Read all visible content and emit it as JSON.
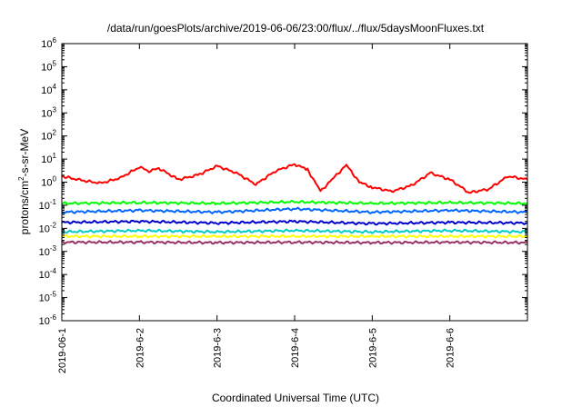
{
  "chart_data": {
    "type": "line",
    "title": "/data/run/goesPlots/archive/2019-06-06/23:00/flux/../flux/5daysMoonFluxes.txt",
    "xlabel": "Coordinated Universal Time (UTC)",
    "ylabel": {
      "pre": "protons/cm",
      "sup": "2",
      "post": "-s-sr-MeV"
    },
    "y_scale": "log",
    "ylim": [
      1e-06,
      1000000.0
    ],
    "xlim": [
      "2019-06-01",
      "2019-06-07"
    ],
    "x_tick_labels": [
      "2019-06-1",
      "2019-6-2",
      "2019-6-3",
      "2019-6-4",
      "2019-6-5",
      "2019-6-6"
    ],
    "y_tick_labels": [
      {
        "base": "10",
        "exp": "-6"
      },
      {
        "base": "10",
        "exp": "-5"
      },
      {
        "base": "10",
        "exp": "-4"
      },
      {
        "base": "10",
        "exp": "-3"
      },
      {
        "base": "10",
        "exp": "-2"
      },
      {
        "base": "10",
        "exp": "-1"
      },
      {
        "base": "10",
        "exp": "0"
      },
      {
        "base": "10",
        "exp": "1"
      },
      {
        "base": "10",
        "exp": "2"
      },
      {
        "base": "10",
        "exp": "3"
      },
      {
        "base": "10",
        "exp": "4"
      },
      {
        "base": "10",
        "exp": "5"
      },
      {
        "base": "10",
        "exp": "6"
      }
    ],
    "grid": false,
    "legend": "none",
    "series": [
      {
        "color": "#ff0000",
        "points": [
          [
            "2019-06-01T00:00",
            1.8
          ],
          [
            "2019-06-01T06:00",
            1.2
          ],
          [
            "2019-06-01T12:00",
            0.9
          ],
          [
            "2019-06-01T18:00",
            1.5
          ],
          [
            "2019-06-02T00:00",
            4.5
          ],
          [
            "2019-06-02T03:00",
            3.0
          ],
          [
            "2019-06-02T06:00",
            4.0
          ],
          [
            "2019-06-02T12:00",
            1.3
          ],
          [
            "2019-06-02T18:00",
            2.0
          ],
          [
            "2019-06-03T00:00",
            5.0
          ],
          [
            "2019-06-03T06:00",
            2.5
          ],
          [
            "2019-06-03T12:00",
            0.8
          ],
          [
            "2019-06-03T18:00",
            3.0
          ],
          [
            "2019-06-04T00:00",
            6.0
          ],
          [
            "2019-06-04T04:00",
            3.5
          ],
          [
            "2019-06-04T08:00",
            0.4
          ],
          [
            "2019-06-04T12:00",
            1.5
          ],
          [
            "2019-06-04T16:00",
            5.5
          ],
          [
            "2019-06-04T20:00",
            1.0
          ],
          [
            "2019-06-05T00:00",
            0.6
          ],
          [
            "2019-06-05T06:00",
            0.4
          ],
          [
            "2019-06-05T12:00",
            0.7
          ],
          [
            "2019-06-05T18:00",
            2.5
          ],
          [
            "2019-06-06T00:00",
            1.3
          ],
          [
            "2019-06-06T06:00",
            0.35
          ],
          [
            "2019-06-06T12:00",
            0.5
          ],
          [
            "2019-06-06T18:00",
            1.8
          ],
          [
            "2019-06-06T23:59",
            1.3
          ]
        ]
      },
      {
        "color": "#00ff00",
        "points": [
          [
            "2019-06-01T00:00",
            0.12
          ],
          [
            "2019-06-02T00:00",
            0.13
          ],
          [
            "2019-06-03T00:00",
            0.12
          ],
          [
            "2019-06-04T00:00",
            0.14
          ],
          [
            "2019-06-05T00:00",
            0.12
          ],
          [
            "2019-06-06T00:00",
            0.13
          ],
          [
            "2019-06-06T23:59",
            0.12
          ]
        ]
      },
      {
        "color": "#0066ff",
        "points": [
          [
            "2019-06-01T00:00",
            0.05
          ],
          [
            "2019-06-02T00:00",
            0.06
          ],
          [
            "2019-06-03T00:00",
            0.05
          ],
          [
            "2019-06-04T00:00",
            0.07
          ],
          [
            "2019-06-05T00:00",
            0.05
          ],
          [
            "2019-06-06T00:00",
            0.06
          ],
          [
            "2019-06-06T23:59",
            0.05
          ]
        ]
      },
      {
        "color": "#0000cc",
        "points": [
          [
            "2019-06-01T00:00",
            0.018
          ],
          [
            "2019-06-02T00:00",
            0.02
          ],
          [
            "2019-06-03T00:00",
            0.017
          ],
          [
            "2019-06-04T00:00",
            0.02
          ],
          [
            "2019-06-05T00:00",
            0.016
          ],
          [
            "2019-06-06T00:00",
            0.018
          ],
          [
            "2019-06-06T23:59",
            0.017
          ]
        ]
      },
      {
        "color": "#00cccc",
        "points": [
          [
            "2019-06-01T00:00",
            0.007
          ],
          [
            "2019-06-02T00:00",
            0.008
          ],
          [
            "2019-06-03T00:00",
            0.007
          ],
          [
            "2019-06-04T00:00",
            0.008
          ],
          [
            "2019-06-05T00:00",
            0.007
          ],
          [
            "2019-06-06T00:00",
            0.008
          ],
          [
            "2019-06-06T23:59",
            0.007
          ]
        ]
      },
      {
        "color": "#ffff00",
        "points": [
          [
            "2019-06-01T00:00",
            0.0045
          ],
          [
            "2019-06-02T00:00",
            0.0045
          ],
          [
            "2019-06-03T00:00",
            0.0045
          ],
          [
            "2019-06-04T00:00",
            0.0045
          ],
          [
            "2019-06-05T00:00",
            0.0045
          ],
          [
            "2019-06-06T00:00",
            0.0045
          ],
          [
            "2019-06-06T23:59",
            0.0045
          ]
        ]
      },
      {
        "color": "#993366",
        "points": [
          [
            "2019-06-01T00:00",
            0.0025
          ],
          [
            "2019-06-02T00:00",
            0.0025
          ],
          [
            "2019-06-03T00:00",
            0.0024
          ],
          [
            "2019-06-04T00:00",
            0.0025
          ],
          [
            "2019-06-05T00:00",
            0.0024
          ],
          [
            "2019-06-06T00:00",
            0.0025
          ],
          [
            "2019-06-06T23:59",
            0.0024
          ]
        ]
      }
    ]
  }
}
